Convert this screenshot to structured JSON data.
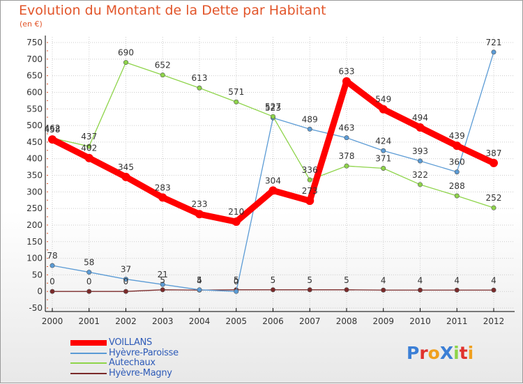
{
  "colors": {
    "title": "#e2552a",
    "axis": "#000000",
    "grid": "#cccccc",
    "tick_marks": "#e2552a"
  },
  "chart_data": {
    "type": "line",
    "title": "Evolution du Montant de la Dette par Habitant",
    "subtitle": "(en €)",
    "xlabel": "",
    "ylabel": "",
    "x": [
      "2000",
      "2001",
      "2002",
      "2003",
      "2004",
      "2005",
      "2006",
      "2007",
      "2008",
      "2009",
      "2010",
      "2011",
      "2012"
    ],
    "ylim": [
      -50,
      750
    ],
    "yticks": [
      -50,
      0,
      50,
      100,
      150,
      200,
      250,
      300,
      350,
      400,
      450,
      500,
      550,
      600,
      650,
      700,
      750
    ],
    "grid": true,
    "legend_position": "bottom-left",
    "series": [
      {
        "name": "VOILLANS",
        "color": "#ff0000",
        "values": [
          458,
          402,
          345,
          283,
          233,
          210,
          304,
          273,
          633,
          549,
          494,
          439,
          387
        ],
        "labels": [
          "458",
          "402",
          "345",
          "283",
          "233",
          "210",
          "304",
          "273",
          "633",
          "549",
          "494",
          "439",
          "387"
        ]
      },
      {
        "name": "Hyèvre-Paroisse",
        "color": "#5b9bd5",
        "values": [
          78,
          58,
          37,
          21,
          5,
          0,
          523,
          489,
          463,
          424,
          393,
          360,
          721
        ],
        "labels": [
          "78",
          "58",
          "37",
          "21",
          "5",
          "0",
          "523",
          "489",
          "463",
          "424",
          "393",
          "360",
          "721"
        ]
      },
      {
        "name": "Autechaux",
        "color": "#8ed44a",
        "values": [
          462,
          437,
          690,
          652,
          613,
          571,
          527,
          336,
          378,
          371,
          322,
          288,
          252
        ],
        "labels": [
          "462",
          "437",
          "690",
          "652",
          "613",
          "571",
          "527",
          "336",
          "378",
          "371",
          "322",
          "288",
          "252"
        ]
      },
      {
        "name": "Hyèvre-Magny",
        "color": "#7b2a2a",
        "values": [
          0,
          0,
          0,
          5,
          4,
          5,
          5,
          5,
          5,
          4,
          4,
          4,
          4
        ],
        "labels": [
          "0",
          "0",
          "0",
          "5",
          "4",
          "5",
          "5",
          "5",
          "5",
          "4",
          "4",
          "4",
          "4"
        ]
      }
    ]
  },
  "logo": {
    "text": "ProXiti",
    "letters": [
      {
        "ch": "P",
        "color": "#3b7fd6"
      },
      {
        "ch": "r",
        "color": "#e0322d"
      },
      {
        "ch": "o",
        "color": "#f0a01e"
      },
      {
        "ch": "X",
        "color": "#3b7fd6"
      },
      {
        "ch": "i",
        "color": "#8ed44a"
      },
      {
        "ch": "t",
        "color": "#e0322d"
      },
      {
        "ch": "i",
        "color": "#f0a01e"
      }
    ]
  }
}
